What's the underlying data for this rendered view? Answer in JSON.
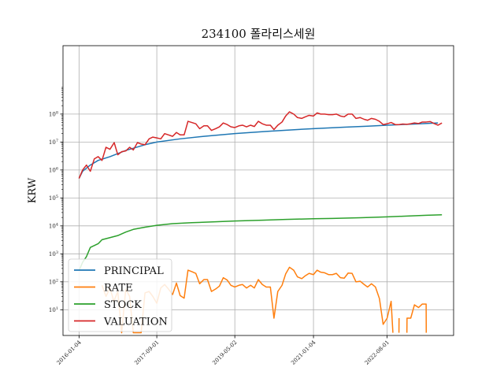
{
  "chart_data": {
    "type": "line",
    "title": "234100 폴라리스세원",
    "xlabel": "",
    "ylabel": "KRW",
    "yscale": "log",
    "ylim": [
      1.2,
      28000000000
    ],
    "xlim": [
      "2015-09-01",
      "2024-01-01"
    ],
    "x_ticks": [
      "2016-01-04",
      "2017-09-01",
      "2019-05-02",
      "2021-01-04",
      "2022-08-01"
    ],
    "y_ticks": [
      {
        "value": 10,
        "label": "10^1"
      },
      {
        "value": 100,
        "label": "10^2"
      },
      {
        "value": 1000,
        "label": "10^3"
      },
      {
        "value": 10000,
        "label": "10^4"
      },
      {
        "value": 100000,
        "label": "10^5"
      },
      {
        "value": 1000000,
        "label": "10^6"
      },
      {
        "value": 10000000,
        "label": "10^7"
      },
      {
        "value": 100000000,
        "label": "10^8"
      }
    ],
    "grid": true,
    "legend_position": "lower-left",
    "series": [
      {
        "name": "PRINCIPAL",
        "color": "#1f77b4",
        "points": [
          [
            "2016-01-04",
            500000
          ],
          [
            "2016-02-01",
            900000
          ],
          [
            "2016-04-01",
            1500000
          ],
          [
            "2016-06-01",
            2200000
          ],
          [
            "2016-09-01",
            3000000
          ],
          [
            "2017-01-02",
            5000000
          ],
          [
            "2017-06-01",
            8000000
          ],
          [
            "2017-09-01",
            10000000
          ],
          [
            "2018-03-02",
            13000000
          ],
          [
            "2018-09-03",
            16000000
          ],
          [
            "2019-05-02",
            20000000
          ],
          [
            "2020-01-02",
            24000000
          ],
          [
            "2020-09-01",
            28000000
          ],
          [
            "2021-01-04",
            30000000
          ],
          [
            "2021-09-01",
            34000000
          ],
          [
            "2022-03-02",
            37000000
          ],
          [
            "2022-08-01",
            40000000
          ],
          [
            "2023-03-02",
            44000000
          ],
          [
            "2023-09-01",
            48000000
          ]
        ]
      },
      {
        "name": "RATE",
        "color": "#ff7f0e",
        "points": [
          [
            "2016-01-04",
            null
          ],
          [
            "2016-06-01",
            null
          ],
          [
            "2016-07-01",
            75
          ],
          [
            "2016-08-01",
            30
          ],
          [
            "2016-09-01",
            60
          ],
          [
            "2016-10-01",
            20
          ],
          [
            "2016-11-01",
            45
          ],
          [
            "2016-12-01",
            1.5
          ],
          [
            "2017-01-02",
            55
          ],
          [
            "2017-02-01",
            30
          ],
          [
            "2017-03-02",
            1.5
          ],
          [
            "2017-05-02",
            1.5
          ],
          [
            "2017-06-01",
            40
          ],
          [
            "2017-07-03",
            45
          ],
          [
            "2017-08-01",
            30
          ],
          [
            "2017-09-01",
            17
          ],
          [
            "2017-10-02",
            60
          ],
          [
            "2017-11-01",
            80
          ],
          [
            "2017-12-01",
            55
          ],
          [
            "2018-01-02",
            35
          ],
          [
            "2018-02-01",
            90
          ],
          [
            "2018-03-02",
            32
          ],
          [
            "2018-04-02",
            26
          ],
          [
            "2018-05-02",
            260
          ],
          [
            "2018-06-01",
            230
          ],
          [
            "2018-07-02",
            200
          ],
          [
            "2018-08-01",
            85
          ],
          [
            "2018-09-03",
            120
          ],
          [
            "2018-10-01",
            120
          ],
          [
            "2018-11-01",
            45
          ],
          [
            "2018-12-03",
            55
          ],
          [
            "2019-01-02",
            70
          ],
          [
            "2019-02-01",
            140
          ],
          [
            "2019-03-04",
            115
          ],
          [
            "2019-04-01",
            75
          ],
          [
            "2019-05-02",
            65
          ],
          [
            "2019-06-03",
            75
          ],
          [
            "2019-07-01",
            80
          ],
          [
            "2019-08-01",
            60
          ],
          [
            "2019-09-02",
            75
          ],
          [
            "2019-10-01",
            60
          ],
          [
            "2019-11-01",
            120
          ],
          [
            "2019-12-02",
            80
          ],
          [
            "2020-01-02",
            65
          ],
          [
            "2020-02-03",
            65
          ],
          [
            "2020-03-02",
            5
          ],
          [
            "2020-04-01",
            45
          ],
          [
            "2020-05-04",
            75
          ],
          [
            "2020-06-01",
            190
          ],
          [
            "2020-07-01",
            330
          ],
          [
            "2020-08-03",
            260
          ],
          [
            "2020-09-01",
            150
          ],
          [
            "2020-10-05",
            130
          ],
          [
            "2020-11-02",
            165
          ],
          [
            "2020-12-01",
            200
          ],
          [
            "2021-01-04",
            180
          ],
          [
            "2021-02-01",
            260
          ],
          [
            "2021-03-02",
            220
          ],
          [
            "2021-04-01",
            210
          ],
          [
            "2021-05-03",
            180
          ],
          [
            "2021-06-01",
            180
          ],
          [
            "2021-07-01",
            200
          ],
          [
            "2021-08-02",
            140
          ],
          [
            "2021-09-01",
            135
          ],
          [
            "2021-10-01",
            205
          ],
          [
            "2021-11-01",
            200
          ],
          [
            "2021-12-01",
            100
          ],
          [
            "2022-01-03",
            105
          ],
          [
            "2022-02-03",
            80
          ],
          [
            "2022-03-02",
            65
          ],
          [
            "2022-04-01",
            85
          ],
          [
            "2022-05-02",
            65
          ],
          [
            "2022-06-02",
            25
          ],
          [
            "2022-07-01",
            3
          ],
          [
            "2022-08-01",
            5
          ],
          [
            "2022-09-01",
            20
          ],
          [
            "2022-09-15",
            1.5
          ],
          [
            "2022-10-04",
            null
          ],
          [
            "2022-11-01",
            1.5
          ],
          [
            "2022-11-02",
            5
          ],
          [
            "2022-12-01",
            null
          ],
          [
            "2023-01-02",
            1.5
          ],
          [
            "2023-01-03",
            5
          ],
          [
            "2023-02-01",
            5
          ],
          [
            "2023-03-02",
            15
          ],
          [
            "2023-04-03",
            12
          ],
          [
            "2023-05-02",
            16
          ],
          [
            "2023-06-01",
            16
          ],
          [
            "2023-06-02",
            1.5
          ]
        ]
      },
      {
        "name": "STOCK",
        "color": "#2ca02c",
        "points": [
          [
            "2016-01-04",
            250
          ],
          [
            "2016-02-01",
            500
          ],
          [
            "2016-03-02",
            800
          ],
          [
            "2016-04-01",
            1700
          ],
          [
            "2016-06-01",
            2300
          ],
          [
            "2016-07-01",
            3200
          ],
          [
            "2016-09-01",
            3800
          ],
          [
            "2016-11-01",
            4500
          ],
          [
            "2017-01-02",
            6000
          ],
          [
            "2017-03-02",
            7500
          ],
          [
            "2017-06-01",
            9000
          ],
          [
            "2017-09-01",
            10500
          ],
          [
            "2018-01-02",
            12000
          ],
          [
            "2018-06-01",
            13000
          ],
          [
            "2018-12-03",
            14000
          ],
          [
            "2019-05-02",
            15000
          ],
          [
            "2019-12-02",
            16000
          ],
          [
            "2020-06-01",
            17000
          ],
          [
            "2021-01-04",
            18000
          ],
          [
            "2021-06-01",
            18500
          ],
          [
            "2022-01-03",
            19500
          ],
          [
            "2022-08-01",
            21000
          ],
          [
            "2023-01-02",
            22500
          ],
          [
            "2023-06-01",
            24000
          ],
          [
            "2023-10-02",
            25000
          ]
        ]
      },
      {
        "name": "VALUATION",
        "color": "#d62728",
        "points": [
          [
            "2016-01-04",
            500000
          ],
          [
            "2016-02-01",
            1000000
          ],
          [
            "2016-03-02",
            1500000
          ],
          [
            "2016-04-01",
            900000
          ],
          [
            "2016-05-02",
            2500000
          ],
          [
            "2016-06-01",
            3000000
          ],
          [
            "2016-07-01",
            2200000
          ],
          [
            "2016-08-01",
            6500000
          ],
          [
            "2016-09-01",
            5500000
          ],
          [
            "2016-10-04",
            9500000
          ],
          [
            "2016-11-01",
            3500000
          ],
          [
            "2016-12-01",
            4500000
          ],
          [
            "2017-01-02",
            4800000
          ],
          [
            "2017-02-01",
            6500000
          ],
          [
            "2017-03-02",
            5200000
          ],
          [
            "2017-04-03",
            9500000
          ],
          [
            "2017-05-02",
            8500000
          ],
          [
            "2017-06-01",
            8000000
          ],
          [
            "2017-07-03",
            13000000
          ],
          [
            "2017-08-01",
            15000000
          ],
          [
            "2017-09-01",
            14000000
          ],
          [
            "2017-10-02",
            13000000
          ],
          [
            "2017-11-01",
            20000000
          ],
          [
            "2017-12-01",
            18000000
          ],
          [
            "2018-01-02",
            16000000
          ],
          [
            "2018-02-01",
            22000000
          ],
          [
            "2018-03-02",
            18000000
          ],
          [
            "2018-04-02",
            18000000
          ],
          [
            "2018-05-02",
            55000000
          ],
          [
            "2018-06-01",
            50000000
          ],
          [
            "2018-07-02",
            45000000
          ],
          [
            "2018-08-01",
            30000000
          ],
          [
            "2018-09-03",
            38000000
          ],
          [
            "2018-10-01",
            38000000
          ],
          [
            "2018-11-01",
            26000000
          ],
          [
            "2018-12-03",
            30000000
          ],
          [
            "2019-01-02",
            35000000
          ],
          [
            "2019-02-01",
            48000000
          ],
          [
            "2019-03-04",
            42000000
          ],
          [
            "2019-04-01",
            35000000
          ],
          [
            "2019-05-02",
            33000000
          ],
          [
            "2019-06-03",
            38000000
          ],
          [
            "2019-07-01",
            40000000
          ],
          [
            "2019-08-01",
            35000000
          ],
          [
            "2019-09-02",
            40000000
          ],
          [
            "2019-10-01",
            36000000
          ],
          [
            "2019-11-01",
            55000000
          ],
          [
            "2019-12-02",
            45000000
          ],
          [
            "2020-01-02",
            40000000
          ],
          [
            "2020-02-03",
            40000000
          ],
          [
            "2020-03-02",
            28000000
          ],
          [
            "2020-04-01",
            40000000
          ],
          [
            "2020-05-04",
            52000000
          ],
          [
            "2020-06-01",
            85000000
          ],
          [
            "2020-07-01",
            120000000
          ],
          [
            "2020-08-03",
            100000000
          ],
          [
            "2020-09-01",
            75000000
          ],
          [
            "2020-10-05",
            70000000
          ],
          [
            "2020-11-02",
            80000000
          ],
          [
            "2020-12-01",
            90000000
          ],
          [
            "2021-01-04",
            85000000
          ],
          [
            "2021-02-01",
            110000000
          ],
          [
            "2021-03-02",
            100000000
          ],
          [
            "2021-04-01",
            100000000
          ],
          [
            "2021-05-03",
            95000000
          ],
          [
            "2021-06-01",
            95000000
          ],
          [
            "2021-07-01",
            100000000
          ],
          [
            "2021-08-02",
            85000000
          ],
          [
            "2021-09-01",
            80000000
          ],
          [
            "2021-10-01",
            100000000
          ],
          [
            "2021-11-01",
            100000000
          ],
          [
            "2021-12-01",
            70000000
          ],
          [
            "2022-01-03",
            75000000
          ],
          [
            "2022-02-03",
            65000000
          ],
          [
            "2022-03-02",
            60000000
          ],
          [
            "2022-04-01",
            70000000
          ],
          [
            "2022-05-02",
            65000000
          ],
          [
            "2022-06-02",
            55000000
          ],
          [
            "2022-07-01",
            42000000
          ],
          [
            "2022-08-01",
            45000000
          ],
          [
            "2022-09-01",
            50000000
          ],
          [
            "2022-10-04",
            42000000
          ],
          [
            "2022-11-01",
            42000000
          ],
          [
            "2022-12-01",
            44000000
          ],
          [
            "2023-01-02",
            43000000
          ],
          [
            "2023-02-01",
            45000000
          ],
          [
            "2023-03-02",
            48000000
          ],
          [
            "2023-04-03",
            46000000
          ],
          [
            "2023-05-02",
            52000000
          ],
          [
            "2023-06-01",
            52000000
          ],
          [
            "2023-07-03",
            54000000
          ],
          [
            "2023-08-01",
            46000000
          ],
          [
            "2023-09-01",
            40000000
          ],
          [
            "2023-10-02",
            48000000
          ]
        ]
      }
    ]
  }
}
